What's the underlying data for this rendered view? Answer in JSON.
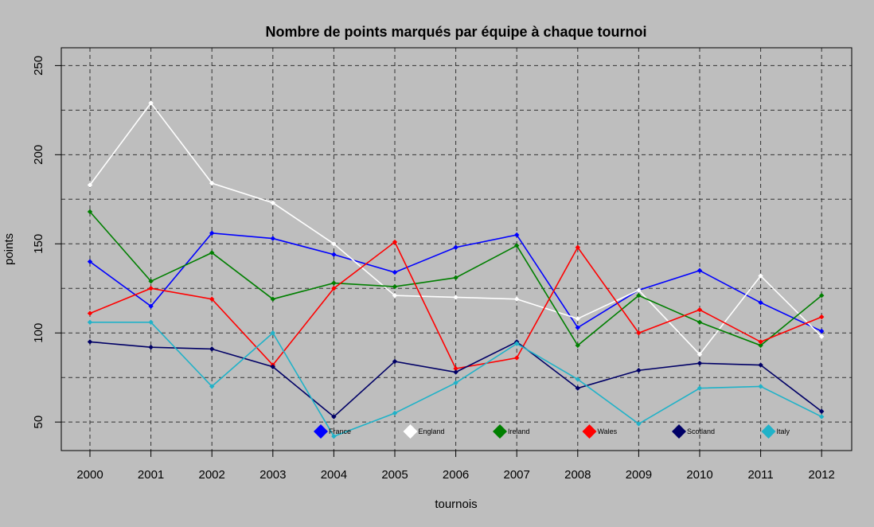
{
  "chart_data": {
    "type": "line",
    "title": "Nombre de points marqués par équipe à chaque tournoi",
    "xlabel": "tournois",
    "ylabel": "points",
    "x": [
      2000,
      2001,
      2002,
      2003,
      2004,
      2005,
      2006,
      2007,
      2008,
      2009,
      2010,
      2011,
      2012
    ],
    "x_tick_labels": [
      "2000",
      "2001",
      "2002",
      "2003",
      "2004",
      "2005",
      "2006",
      "2007",
      "2008",
      "2009",
      "2010",
      "2011",
      "2012"
    ],
    "ylim": [
      34,
      260
    ],
    "y_ticks": [
      50,
      100,
      150,
      200,
      250
    ],
    "y_tick_labels": [
      "50",
      "100",
      "150",
      "200",
      "250"
    ],
    "y_grid": [
      50,
      75,
      100,
      125,
      150,
      175,
      200,
      225,
      250
    ],
    "grid": true,
    "legend_position": "bottom",
    "series": [
      {
        "name": "France",
        "color": "#0000ff",
        "values": [
          140,
          115,
          156,
          153,
          144,
          134,
          148,
          155,
          103,
          124,
          135,
          117,
          101
        ]
      },
      {
        "name": "England",
        "color": "#ffffff",
        "values": [
          183,
          229,
          184,
          173,
          150,
          121,
          120,
          119,
          108,
          124,
          88,
          132,
          98
        ]
      },
      {
        "name": "Ireland",
        "color": "#007f00",
        "values": [
          168,
          129,
          145,
          119,
          128,
          126,
          131,
          149,
          93,
          121,
          106,
          93,
          121
        ]
      },
      {
        "name": "Wales",
        "color": "#ff0000",
        "values": [
          111,
          125,
          119,
          82,
          125,
          151,
          80,
          86,
          148,
          100,
          113,
          95,
          109
        ]
      },
      {
        "name": "Scotland",
        "color": "#000066",
        "values": [
          95,
          92,
          91,
          81,
          53,
          84,
          78,
          95,
          69,
          79,
          83,
          82,
          56
        ]
      },
      {
        "name": "Italy",
        "color": "#20b2c8",
        "values": [
          106,
          106,
          70,
          100,
          42,
          55,
          72,
          94,
          74,
          49,
          69,
          70,
          53
        ]
      }
    ]
  }
}
